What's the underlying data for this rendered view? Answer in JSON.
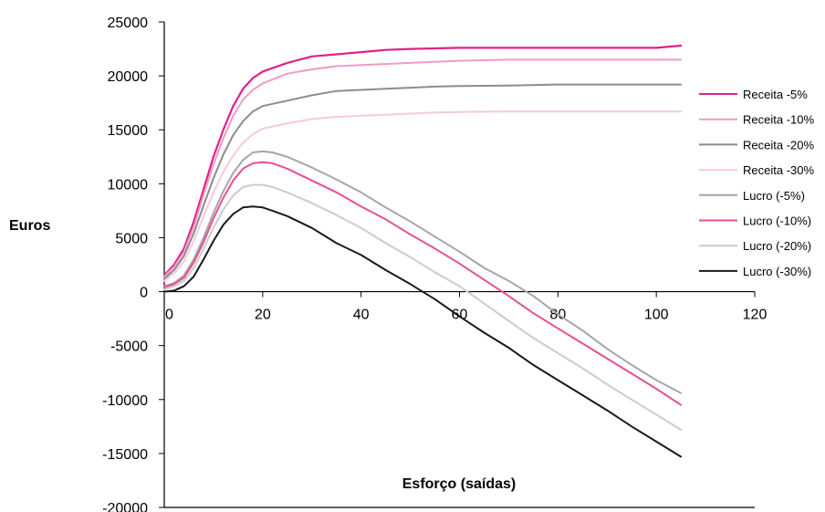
{
  "chart_data": {
    "type": "line",
    "xlabel": "Esforço (saídas)",
    "ylabel": "Euros",
    "xlim": [
      0,
      120
    ],
    "ylim": [
      -20000,
      25000
    ],
    "x_ticks": [
      0,
      20,
      40,
      60,
      80,
      100,
      120
    ],
    "y_ticks": [
      25000,
      20000,
      15000,
      10000,
      5000,
      0,
      -5000,
      -10000,
      -15000,
      -20000
    ],
    "x_tick_labels": [
      "0",
      "20",
      "40",
      "60",
      "80",
      "100",
      "120"
    ],
    "y_tick_labels": [
      "25000",
      "20000",
      "15000",
      "10000",
      "5000",
      "0",
      "-5000",
      "-10000",
      "-15000",
      "-20000"
    ],
    "grid": false,
    "legend_position": "right",
    "series": [
      {
        "name": "Receita -5%",
        "color": "#e0218a",
        "width": 2.2,
        "x": [
          0,
          2,
          4,
          6,
          8,
          10,
          12,
          14,
          16,
          18,
          20,
          25,
          30,
          35,
          40,
          45,
          50,
          55,
          60,
          70,
          80,
          90,
          100,
          105
        ],
        "y": [
          1500,
          2500,
          4000,
          6500,
          9500,
          12500,
          15000,
          17200,
          18800,
          19800,
          20400,
          21200,
          21800,
          22000,
          22200,
          22400,
          22500,
          22550,
          22600,
          22600,
          22600,
          22600,
          22600,
          22800
        ]
      },
      {
        "name": "Receita -10%",
        "color": "#f09bc6",
        "width": 2,
        "x": [
          0,
          2,
          4,
          6,
          8,
          10,
          12,
          14,
          16,
          18,
          20,
          25,
          30,
          35,
          40,
          45,
          50,
          55,
          60,
          70,
          80,
          90,
          100,
          105
        ],
        "y": [
          1400,
          2300,
          3700,
          6000,
          9000,
          11800,
          14200,
          16300,
          17800,
          18700,
          19300,
          20200,
          20600,
          20900,
          21000,
          21100,
          21200,
          21300,
          21400,
          21500,
          21500,
          21500,
          21500,
          21500
        ]
      },
      {
        "name": "Receita -20%",
        "color": "#8c8c8c",
        "width": 2,
        "x": [
          0,
          2,
          4,
          6,
          8,
          10,
          12,
          14,
          16,
          18,
          20,
          25,
          30,
          35,
          40,
          45,
          50,
          55,
          60,
          70,
          80,
          90,
          100,
          105
        ],
        "y": [
          1200,
          2000,
          3300,
          5400,
          8000,
          10500,
          12700,
          14500,
          15800,
          16700,
          17200,
          17700,
          18200,
          18600,
          18700,
          18800,
          18900,
          19000,
          19050,
          19100,
          19200,
          19200,
          19200,
          19200
        ]
      },
      {
        "name": "Receita -30%",
        "color": "#f6c9dd",
        "width": 2,
        "x": [
          0,
          2,
          4,
          6,
          8,
          10,
          12,
          14,
          16,
          18,
          20,
          25,
          30,
          35,
          40,
          45,
          50,
          55,
          60,
          70,
          80,
          90,
          100,
          105
        ],
        "y": [
          1000,
          1700,
          2800,
          4700,
          7000,
          9200,
          11100,
          12600,
          13800,
          14600,
          15100,
          15600,
          16000,
          16200,
          16300,
          16400,
          16500,
          16600,
          16650,
          16700,
          16700,
          16700,
          16700,
          16700
        ]
      },
      {
        "name": "Lucro (-5%)",
        "color": "#a6a6a6",
        "width": 2,
        "x": [
          0,
          2,
          4,
          6,
          8,
          10,
          12,
          14,
          16,
          18,
          20,
          22,
          25,
          30,
          35,
          40,
          45,
          50,
          55,
          60,
          65,
          70,
          75,
          80,
          85,
          90,
          95,
          100,
          105
        ],
        "y": [
          500,
          800,
          1500,
          3000,
          5000,
          7300,
          9300,
          11000,
          12200,
          12900,
          13000,
          12900,
          12500,
          11500,
          10400,
          9200,
          7800,
          6500,
          5100,
          3700,
          2200,
          1000,
          -400,
          -2100,
          -3600,
          -5300,
          -6800,
          -8200,
          -9400
        ]
      },
      {
        "name": "Lucro (-10%)",
        "color": "#e84e96",
        "width": 2,
        "x": [
          0,
          2,
          4,
          6,
          8,
          10,
          12,
          14,
          16,
          18,
          20,
          22,
          25,
          30,
          35,
          40,
          45,
          50,
          55,
          60,
          65,
          70,
          75,
          80,
          85,
          90,
          95,
          100,
          105
        ],
        "y": [
          400,
          700,
          1300,
          2700,
          4600,
          6800,
          8700,
          10300,
          11400,
          11900,
          12000,
          11900,
          11400,
          10300,
          9200,
          7900,
          6700,
          5300,
          4000,
          2600,
          1100,
          -400,
          -2000,
          -3400,
          -4800,
          -6200,
          -7600,
          -9000,
          -10500
        ]
      },
      {
        "name": "Lucro (-20%)",
        "color": "#cccccc",
        "width": 2,
        "x": [
          0,
          2,
          4,
          6,
          8,
          10,
          12,
          14,
          16,
          18,
          20,
          22,
          25,
          30,
          35,
          40,
          45,
          50,
          55,
          60,
          65,
          70,
          75,
          80,
          85,
          90,
          95,
          100,
          105
        ],
        "y": [
          200,
          500,
          1000,
          2200,
          4000,
          5900,
          7600,
          8900,
          9700,
          9900,
          9900,
          9700,
          9200,
          8200,
          7100,
          5900,
          4500,
          3200,
          1800,
          500,
          -1100,
          -2700,
          -4300,
          -5700,
          -7100,
          -8600,
          -10000,
          -11400,
          -12800
        ]
      },
      {
        "name": "Lucro (-30%)",
        "color": "#1a1a1a",
        "width": 2,
        "x": [
          0,
          2,
          4,
          6,
          8,
          10,
          12,
          14,
          16,
          18,
          20,
          22,
          25,
          30,
          35,
          40,
          45,
          50,
          55,
          60,
          65,
          70,
          75,
          80,
          85,
          90,
          95,
          100,
          105
        ],
        "y": [
          0,
          100,
          500,
          1400,
          3000,
          4700,
          6200,
          7200,
          7800,
          7900,
          7800,
          7500,
          7000,
          5900,
          4500,
          3400,
          2000,
          700,
          -700,
          -2300,
          -3800,
          -5200,
          -6800,
          -8200,
          -9600,
          -11000,
          -12500,
          -13900,
          -15300
        ]
      }
    ]
  }
}
